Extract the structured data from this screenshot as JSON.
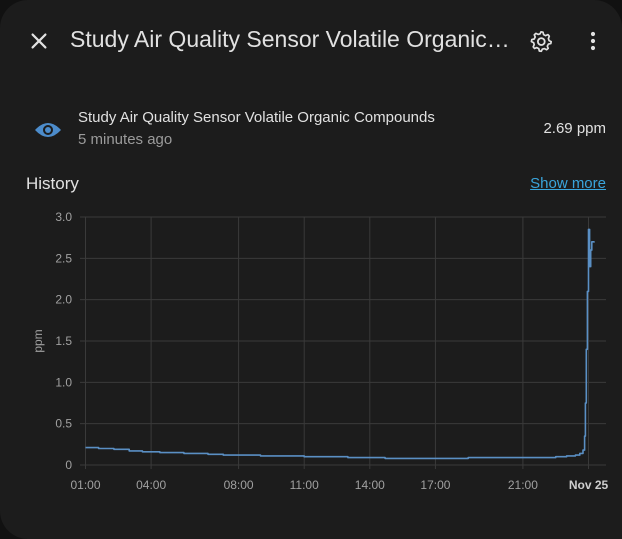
{
  "header": {
    "title": "Study Air Quality Sensor Volatile Organic Compounds",
    "close_icon": "close-icon",
    "settings_icon": "gear-icon",
    "menu_icon": "more-vertical-icon"
  },
  "entity": {
    "icon": "eye-icon",
    "name": "Study Air Quality Sensor Volatile Organic Compounds",
    "last_changed": "5 minutes ago",
    "state": "2.69 ppm"
  },
  "history": {
    "label": "History",
    "show_more": "Show more"
  },
  "colors": {
    "background": "#1c1c1c",
    "accent": "#3aa5dc",
    "line": "#5a8fc4",
    "icon": "#4c8ccb"
  },
  "chart_data": {
    "type": "line",
    "ylabel": "ppm",
    "ylim": [
      0,
      3.0
    ],
    "yticks": [
      "0",
      "0.5",
      "1.0",
      "1.5",
      "2.0",
      "2.5",
      "3.0"
    ],
    "xticks": [
      {
        "h": 1,
        "label": "01:00",
        "bold": false
      },
      {
        "h": 4,
        "label": "04:00",
        "bold": false
      },
      {
        "h": 8,
        "label": "08:00",
        "bold": false
      },
      {
        "h": 11,
        "label": "11:00",
        "bold": false
      },
      {
        "h": 14,
        "label": "14:00",
        "bold": false
      },
      {
        "h": 17,
        "label": "17:00",
        "bold": false
      },
      {
        "h": 21,
        "label": "21:00",
        "bold": false
      },
      {
        "h": 24,
        "label": "Nov 25",
        "bold": true
      }
    ],
    "grid": true,
    "series": [
      {
        "points": [
          [
            1.0,
            0.21
          ],
          [
            1.6,
            0.2
          ],
          [
            2.3,
            0.19
          ],
          [
            3.0,
            0.17
          ],
          [
            3.6,
            0.16
          ],
          [
            4.4,
            0.15
          ],
          [
            5.0,
            0.15
          ],
          [
            5.5,
            0.14
          ],
          [
            6.0,
            0.14
          ],
          [
            6.6,
            0.13
          ],
          [
            7.3,
            0.12
          ],
          [
            8.2,
            0.12
          ],
          [
            9.0,
            0.11
          ],
          [
            10.0,
            0.11
          ],
          [
            11.0,
            0.1
          ],
          [
            12.0,
            0.1
          ],
          [
            13.0,
            0.09
          ],
          [
            14.0,
            0.09
          ],
          [
            14.7,
            0.08
          ],
          [
            15.3,
            0.08
          ],
          [
            16.0,
            0.08
          ],
          [
            16.8,
            0.08
          ],
          [
            17.5,
            0.08
          ],
          [
            18.0,
            0.08
          ],
          [
            18.5,
            0.09
          ],
          [
            19.0,
            0.09
          ],
          [
            19.7,
            0.09
          ],
          [
            20.2,
            0.09
          ],
          [
            21.0,
            0.09
          ],
          [
            21.8,
            0.09
          ],
          [
            22.5,
            0.1
          ],
          [
            23.0,
            0.11
          ],
          [
            23.4,
            0.12
          ],
          [
            23.6,
            0.14
          ],
          [
            23.75,
            0.18
          ],
          [
            23.82,
            0.35
          ],
          [
            23.86,
            0.75
          ],
          [
            23.9,
            1.4
          ],
          [
            23.95,
            2.1
          ],
          [
            24.0,
            2.85
          ],
          [
            24.05,
            2.4
          ],
          [
            24.1,
            2.6
          ],
          [
            24.15,
            2.7
          ],
          [
            24.25,
            2.69
          ]
        ]
      }
    ]
  }
}
